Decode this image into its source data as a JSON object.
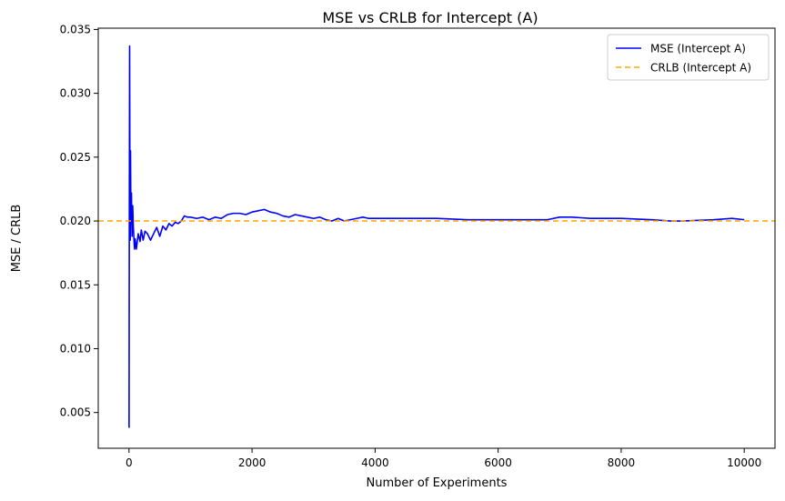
{
  "chart_data": {
    "type": "line",
    "title": "MSE vs CRLB for Intercept (A)",
    "xlabel": "Number of Experiments",
    "ylabel": "MSE / CRLB",
    "xlim": [
      -500,
      10500
    ],
    "ylim": [
      0.0022,
      0.0351
    ],
    "x_ticks": [
      0,
      2000,
      4000,
      6000,
      8000,
      10000
    ],
    "x_tick_labels": [
      "0",
      "2000",
      "4000",
      "6000",
      "8000",
      "10000"
    ],
    "y_ticks": [
      0.005,
      0.01,
      0.015,
      0.02,
      0.025,
      0.03,
      0.035
    ],
    "y_tick_labels": [
      "0.005",
      "0.010",
      "0.015",
      "0.020",
      "0.025",
      "0.030",
      "0.035"
    ],
    "grid": false,
    "legend_position": "top-right",
    "series": [
      {
        "name": "MSE (Intercept A)",
        "color": "#0000ff",
        "style": "solid",
        "x": [
          1,
          3,
          6,
          10,
          15,
          20,
          25,
          30,
          35,
          40,
          45,
          50,
          60,
          70,
          80,
          90,
          100,
          120,
          150,
          180,
          200,
          230,
          260,
          300,
          350,
          400,
          450,
          500,
          550,
          600,
          650,
          700,
          750,
          800,
          850,
          900,
          950,
          1000,
          1100,
          1200,
          1300,
          1400,
          1500,
          1600,
          1700,
          1800,
          1900,
          2000,
          2100,
          2200,
          2300,
          2400,
          2500,
          2600,
          2700,
          2800,
          2900,
          3000,
          3100,
          3200,
          3300,
          3400,
          3500,
          3600,
          3700,
          3800,
          3900,
          4000,
          4500,
          5000,
          5500,
          6000,
          6500,
          6800,
          7000,
          7200,
          7500,
          8000,
          8500,
          8800,
          9000,
          9500,
          9800,
          10000
        ],
        "y": [
          0.0038,
          0.0128,
          0.0225,
          0.0337,
          0.023,
          0.0185,
          0.0255,
          0.0208,
          0.0198,
          0.0222,
          0.02,
          0.0188,
          0.0212,
          0.0196,
          0.0186,
          0.0178,
          0.0186,
          0.0178,
          0.019,
          0.0184,
          0.0193,
          0.0185,
          0.0192,
          0.019,
          0.0185,
          0.019,
          0.0195,
          0.0188,
          0.0196,
          0.0193,
          0.0198,
          0.0196,
          0.0199,
          0.0198,
          0.02,
          0.0204,
          0.0203,
          0.0203,
          0.0202,
          0.0203,
          0.0201,
          0.0203,
          0.0202,
          0.0205,
          0.0206,
          0.0206,
          0.0205,
          0.0207,
          0.0208,
          0.0209,
          0.0207,
          0.0206,
          0.0204,
          0.0203,
          0.0205,
          0.0204,
          0.0203,
          0.0202,
          0.0203,
          0.0201,
          0.02,
          0.0202,
          0.02,
          0.0201,
          0.0202,
          0.0203,
          0.0202,
          0.0202,
          0.0202,
          0.0202,
          0.0201,
          0.0201,
          0.0201,
          0.0201,
          0.0203,
          0.0203,
          0.0202,
          0.0202,
          0.0201,
          0.02,
          0.02,
          0.0201,
          0.0202,
          0.0201
        ]
      },
      {
        "name": "CRLB (Intercept A)",
        "color": "#ffa500",
        "style": "dashed",
        "y_constant": 0.02
      }
    ]
  }
}
